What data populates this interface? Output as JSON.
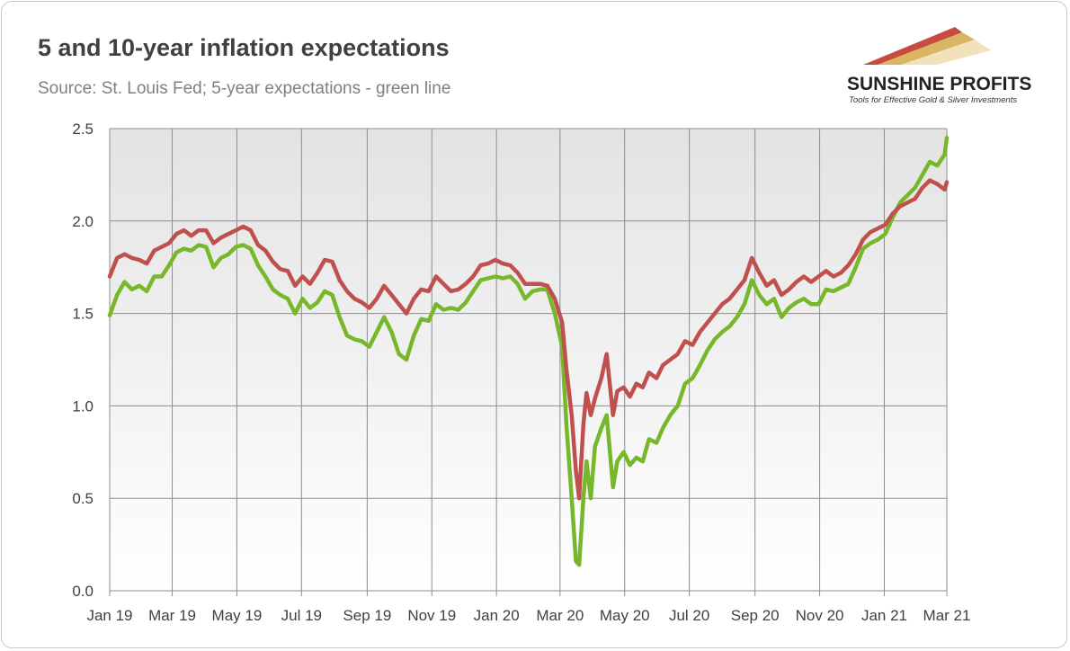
{
  "header": {
    "title": "5 and 10-year inflation expectations",
    "subtitle": "Source: St. Louis Fed; 5-year expectations - green line"
  },
  "logo": {
    "name": "SUNSHINE PROFITS",
    "tagline": "Tools for Effective Gold & Silver Investments"
  },
  "colors": {
    "five_year": "#76b82a",
    "ten_year": "#c0504d",
    "plot_bg_top": "#e3e3e3",
    "plot_bg_bottom": "#ffffff",
    "grid": "#8c8c8c"
  },
  "chart_data": {
    "type": "line",
    "title": "5 and 10-year inflation expectations",
    "subtitle": "Source: St. Louis Fed; 5-year expectations - green line",
    "xlabel": "",
    "ylabel": "",
    "xlim": [
      "2019-01-01",
      "2021-03-01"
    ],
    "ylim": [
      0,
      2.5
    ],
    "x_ticks": [
      "Jan 19",
      "Mar 19",
      "May 19",
      "Jul 19",
      "Sep 19",
      "Nov 19",
      "Jan 20",
      "Mar 20",
      "May 20",
      "Jul 20",
      "Sep 20",
      "Nov 20",
      "Jan 21",
      "Mar 21"
    ],
    "y_ticks": [
      "0.0",
      "0.5",
      "1.0",
      "1.5",
      "2.0",
      "2.5"
    ],
    "grid": true,
    "legend": "none",
    "series": [
      {
        "color": "#76b82a",
        "points": [
          [
            "2019-01-01",
            1.49
          ],
          [
            "2019-01-08",
            1.6
          ],
          [
            "2019-01-15",
            1.67
          ],
          [
            "2019-01-22",
            1.63
          ],
          [
            "2019-01-29",
            1.65
          ],
          [
            "2019-02-05",
            1.62
          ],
          [
            "2019-02-12",
            1.7
          ],
          [
            "2019-02-19",
            1.7
          ],
          [
            "2019-02-26",
            1.76
          ],
          [
            "2019-03-05",
            1.83
          ],
          [
            "2019-03-12",
            1.85
          ],
          [
            "2019-03-19",
            1.84
          ],
          [
            "2019-03-26",
            1.87
          ],
          [
            "2019-04-02",
            1.86
          ],
          [
            "2019-04-09",
            1.75
          ],
          [
            "2019-04-16",
            1.8
          ],
          [
            "2019-04-23",
            1.82
          ],
          [
            "2019-04-30",
            1.86
          ],
          [
            "2019-05-07",
            1.87
          ],
          [
            "2019-05-14",
            1.85
          ],
          [
            "2019-05-21",
            1.76
          ],
          [
            "2019-05-28",
            1.7
          ],
          [
            "2019-06-04",
            1.63
          ],
          [
            "2019-06-11",
            1.6
          ],
          [
            "2019-06-18",
            1.58
          ],
          [
            "2019-06-25",
            1.5
          ],
          [
            "2019-07-02",
            1.58
          ],
          [
            "2019-07-09",
            1.53
          ],
          [
            "2019-07-16",
            1.56
          ],
          [
            "2019-07-23",
            1.62
          ],
          [
            "2019-07-30",
            1.6
          ],
          [
            "2019-08-06",
            1.48
          ],
          [
            "2019-08-13",
            1.38
          ],
          [
            "2019-08-20",
            1.36
          ],
          [
            "2019-08-27",
            1.35
          ],
          [
            "2019-09-03",
            1.32
          ],
          [
            "2019-09-10",
            1.4
          ],
          [
            "2019-09-17",
            1.48
          ],
          [
            "2019-09-24",
            1.4
          ],
          [
            "2019-10-01",
            1.28
          ],
          [
            "2019-10-08",
            1.25
          ],
          [
            "2019-10-15",
            1.38
          ],
          [
            "2019-10-22",
            1.47
          ],
          [
            "2019-10-29",
            1.46
          ],
          [
            "2019-11-05",
            1.55
          ],
          [
            "2019-11-12",
            1.52
          ],
          [
            "2019-11-19",
            1.53
          ],
          [
            "2019-11-26",
            1.52
          ],
          [
            "2019-12-03",
            1.56
          ],
          [
            "2019-12-10",
            1.62
          ],
          [
            "2019-12-17",
            1.68
          ],
          [
            "2019-12-24",
            1.69
          ],
          [
            "2019-12-31",
            1.7
          ],
          [
            "2020-01-07",
            1.69
          ],
          [
            "2020-01-14",
            1.7
          ],
          [
            "2020-01-21",
            1.66
          ],
          [
            "2020-01-28",
            1.58
          ],
          [
            "2020-02-04",
            1.62
          ],
          [
            "2020-02-11",
            1.63
          ],
          [
            "2020-02-18",
            1.63
          ],
          [
            "2020-02-25",
            1.5
          ],
          [
            "2020-03-03",
            1.32
          ],
          [
            "2020-03-07",
            0.9
          ],
          [
            "2020-03-12",
            0.5
          ],
          [
            "2020-03-16",
            0.16
          ],
          [
            "2020-03-19",
            0.14
          ],
          [
            "2020-03-23",
            0.5
          ],
          [
            "2020-03-26",
            0.7
          ],
          [
            "2020-03-30",
            0.5
          ],
          [
            "2020-04-03",
            0.78
          ],
          [
            "2020-04-09",
            0.88
          ],
          [
            "2020-04-14",
            0.95
          ],
          [
            "2020-04-20",
            0.56
          ],
          [
            "2020-04-24",
            0.7
          ],
          [
            "2020-04-30",
            0.75
          ],
          [
            "2020-05-06",
            0.68
          ],
          [
            "2020-05-12",
            0.72
          ],
          [
            "2020-05-18",
            0.7
          ],
          [
            "2020-05-24",
            0.82
          ],
          [
            "2020-05-31",
            0.8
          ],
          [
            "2020-06-06",
            0.88
          ],
          [
            "2020-06-13",
            0.95
          ],
          [
            "2020-06-20",
            1.0
          ],
          [
            "2020-06-27",
            1.12
          ],
          [
            "2020-07-04",
            1.15
          ],
          [
            "2020-07-11",
            1.22
          ],
          [
            "2020-07-18",
            1.3
          ],
          [
            "2020-07-25",
            1.36
          ],
          [
            "2020-08-01",
            1.4
          ],
          [
            "2020-08-08",
            1.43
          ],
          [
            "2020-08-15",
            1.48
          ],
          [
            "2020-08-22",
            1.55
          ],
          [
            "2020-08-29",
            1.68
          ],
          [
            "2020-09-05",
            1.6
          ],
          [
            "2020-09-12",
            1.55
          ],
          [
            "2020-09-19",
            1.58
          ],
          [
            "2020-09-26",
            1.48
          ],
          [
            "2020-10-03",
            1.53
          ],
          [
            "2020-10-10",
            1.56
          ],
          [
            "2020-10-17",
            1.58
          ],
          [
            "2020-10-24",
            1.55
          ],
          [
            "2020-10-31",
            1.55
          ],
          [
            "2020-11-07",
            1.63
          ],
          [
            "2020-11-14",
            1.62
          ],
          [
            "2020-11-21",
            1.64
          ],
          [
            "2020-11-28",
            1.66
          ],
          [
            "2020-12-05",
            1.75
          ],
          [
            "2020-12-12",
            1.85
          ],
          [
            "2020-12-19",
            1.88
          ],
          [
            "2020-12-26",
            1.9
          ],
          [
            "2021-01-02",
            1.93
          ],
          [
            "2021-01-09",
            2.02
          ],
          [
            "2021-01-16",
            2.1
          ],
          [
            "2021-01-23",
            2.14
          ],
          [
            "2021-01-30",
            2.18
          ],
          [
            "2021-02-06",
            2.25
          ],
          [
            "2021-02-13",
            2.32
          ],
          [
            "2021-02-20",
            2.3
          ],
          [
            "2021-02-27",
            2.36
          ],
          [
            "2021-03-01",
            2.45
          ]
        ]
      },
      {
        "color": "#c0504d",
        "points": [
          [
            "2019-01-01",
            1.7
          ],
          [
            "2019-01-08",
            1.8
          ],
          [
            "2019-01-15",
            1.82
          ],
          [
            "2019-01-22",
            1.8
          ],
          [
            "2019-01-29",
            1.79
          ],
          [
            "2019-02-05",
            1.77
          ],
          [
            "2019-02-12",
            1.84
          ],
          [
            "2019-02-19",
            1.86
          ],
          [
            "2019-02-26",
            1.88
          ],
          [
            "2019-03-05",
            1.93
          ],
          [
            "2019-03-12",
            1.95
          ],
          [
            "2019-03-19",
            1.92
          ],
          [
            "2019-03-26",
            1.95
          ],
          [
            "2019-04-02",
            1.95
          ],
          [
            "2019-04-09",
            1.88
          ],
          [
            "2019-04-16",
            1.91
          ],
          [
            "2019-04-23",
            1.93
          ],
          [
            "2019-04-30",
            1.95
          ],
          [
            "2019-05-07",
            1.97
          ],
          [
            "2019-05-14",
            1.95
          ],
          [
            "2019-05-21",
            1.87
          ],
          [
            "2019-05-28",
            1.84
          ],
          [
            "2019-06-04",
            1.78
          ],
          [
            "2019-06-11",
            1.74
          ],
          [
            "2019-06-18",
            1.73
          ],
          [
            "2019-06-25",
            1.65
          ],
          [
            "2019-07-02",
            1.7
          ],
          [
            "2019-07-09",
            1.66
          ],
          [
            "2019-07-16",
            1.72
          ],
          [
            "2019-07-23",
            1.79
          ],
          [
            "2019-07-30",
            1.78
          ],
          [
            "2019-08-06",
            1.68
          ],
          [
            "2019-08-13",
            1.62
          ],
          [
            "2019-08-20",
            1.58
          ],
          [
            "2019-08-27",
            1.56
          ],
          [
            "2019-09-03",
            1.53
          ],
          [
            "2019-09-10",
            1.58
          ],
          [
            "2019-09-17",
            1.65
          ],
          [
            "2019-09-24",
            1.6
          ],
          [
            "2019-10-01",
            1.55
          ],
          [
            "2019-10-08",
            1.5
          ],
          [
            "2019-10-15",
            1.58
          ],
          [
            "2019-10-22",
            1.63
          ],
          [
            "2019-10-29",
            1.62
          ],
          [
            "2019-11-05",
            1.7
          ],
          [
            "2019-11-12",
            1.66
          ],
          [
            "2019-11-19",
            1.62
          ],
          [
            "2019-11-26",
            1.63
          ],
          [
            "2019-12-03",
            1.66
          ],
          [
            "2019-12-10",
            1.7
          ],
          [
            "2019-12-17",
            1.76
          ],
          [
            "2019-12-24",
            1.77
          ],
          [
            "2019-12-31",
            1.79
          ],
          [
            "2020-01-07",
            1.77
          ],
          [
            "2020-01-14",
            1.76
          ],
          [
            "2020-01-21",
            1.72
          ],
          [
            "2020-01-28",
            1.66
          ],
          [
            "2020-02-04",
            1.66
          ],
          [
            "2020-02-11",
            1.66
          ],
          [
            "2020-02-18",
            1.65
          ],
          [
            "2020-02-25",
            1.58
          ],
          [
            "2020-03-03",
            1.45
          ],
          [
            "2020-03-07",
            1.2
          ],
          [
            "2020-03-12",
            0.95
          ],
          [
            "2020-03-16",
            0.65
          ],
          [
            "2020-03-19",
            0.5
          ],
          [
            "2020-03-23",
            0.9
          ],
          [
            "2020-03-26",
            1.07
          ],
          [
            "2020-03-30",
            0.95
          ],
          [
            "2020-04-03",
            1.04
          ],
          [
            "2020-04-09",
            1.15
          ],
          [
            "2020-04-14",
            1.28
          ],
          [
            "2020-04-20",
            0.95
          ],
          [
            "2020-04-24",
            1.08
          ],
          [
            "2020-04-30",
            1.1
          ],
          [
            "2020-05-06",
            1.05
          ],
          [
            "2020-05-12",
            1.12
          ],
          [
            "2020-05-18",
            1.1
          ],
          [
            "2020-05-24",
            1.18
          ],
          [
            "2020-05-31",
            1.15
          ],
          [
            "2020-06-06",
            1.22
          ],
          [
            "2020-06-13",
            1.25
          ],
          [
            "2020-06-20",
            1.28
          ],
          [
            "2020-06-27",
            1.35
          ],
          [
            "2020-07-04",
            1.33
          ],
          [
            "2020-07-11",
            1.4
          ],
          [
            "2020-07-18",
            1.45
          ],
          [
            "2020-07-25",
            1.5
          ],
          [
            "2020-08-01",
            1.55
          ],
          [
            "2020-08-08",
            1.58
          ],
          [
            "2020-08-15",
            1.63
          ],
          [
            "2020-08-22",
            1.68
          ],
          [
            "2020-08-29",
            1.8
          ],
          [
            "2020-09-05",
            1.72
          ],
          [
            "2020-09-12",
            1.65
          ],
          [
            "2020-09-19",
            1.68
          ],
          [
            "2020-09-26",
            1.6
          ],
          [
            "2020-10-03",
            1.63
          ],
          [
            "2020-10-10",
            1.67
          ],
          [
            "2020-10-17",
            1.7
          ],
          [
            "2020-10-24",
            1.67
          ],
          [
            "2020-10-31",
            1.7
          ],
          [
            "2020-11-07",
            1.73
          ],
          [
            "2020-11-14",
            1.7
          ],
          [
            "2020-11-21",
            1.72
          ],
          [
            "2020-11-28",
            1.76
          ],
          [
            "2020-12-05",
            1.82
          ],
          [
            "2020-12-12",
            1.9
          ],
          [
            "2020-12-19",
            1.94
          ],
          [
            "2020-12-26",
            1.96
          ],
          [
            "2021-01-02",
            1.98
          ],
          [
            "2021-01-09",
            2.04
          ],
          [
            "2021-01-16",
            2.08
          ],
          [
            "2021-01-23",
            2.1
          ],
          [
            "2021-01-30",
            2.12
          ],
          [
            "2021-02-06",
            2.18
          ],
          [
            "2021-02-13",
            2.22
          ],
          [
            "2021-02-20",
            2.2
          ],
          [
            "2021-02-27",
            2.17
          ],
          [
            "2021-03-01",
            2.21
          ]
        ]
      }
    ]
  }
}
